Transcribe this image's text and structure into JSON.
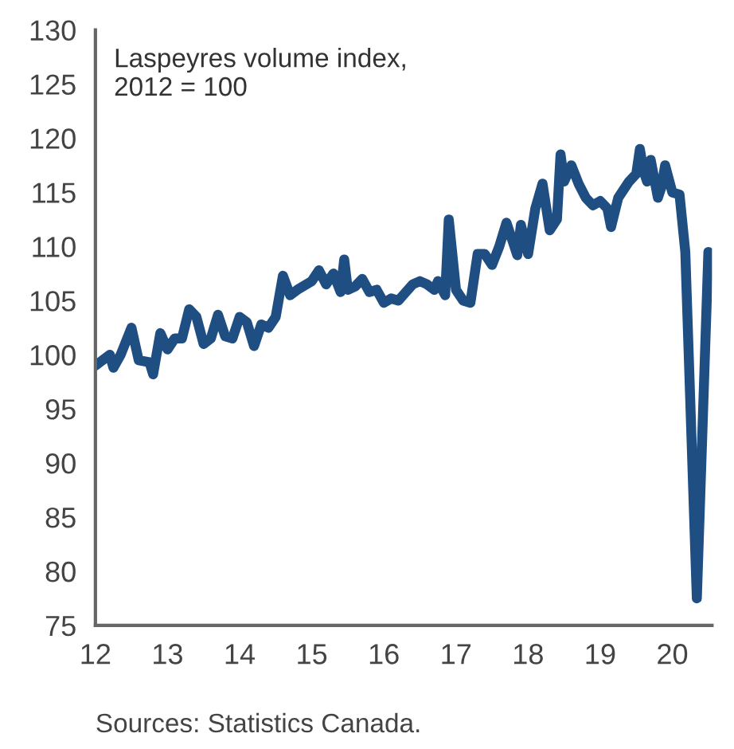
{
  "chart_data": {
    "type": "line",
    "x": [
      12.0,
      12.1,
      12.2,
      12.25,
      12.35,
      12.5,
      12.6,
      12.75,
      12.8,
      12.9,
      13.0,
      13.1,
      13.2,
      13.3,
      13.4,
      13.5,
      13.6,
      13.7,
      13.8,
      13.9,
      14.0,
      14.1,
      14.2,
      14.3,
      14.4,
      14.5,
      14.6,
      14.7,
      14.8,
      15.0,
      15.1,
      15.2,
      15.3,
      15.4,
      15.45,
      15.5,
      15.6,
      15.7,
      15.8,
      15.9,
      16.0,
      16.1,
      16.2,
      16.4,
      16.5,
      16.6,
      16.7,
      16.75,
      16.85,
      16.9,
      17.0,
      17.1,
      17.2,
      17.3,
      17.4,
      17.5,
      17.6,
      17.7,
      17.8,
      17.85,
      17.9,
      18.0,
      18.1,
      18.2,
      18.3,
      18.4,
      18.45,
      18.5,
      18.6,
      18.7,
      18.8,
      18.9,
      19.0,
      19.1,
      19.15,
      19.25,
      19.4,
      19.5,
      19.55,
      19.6,
      19.65,
      19.7,
      19.8,
      19.85,
      19.9,
      20.0,
      20.1,
      20.18,
      20.34,
      20.5
    ],
    "series": [
      {
        "color": "#1f4e82",
        "values": [
          99,
          99.5,
          100,
          98.8,
          100,
          102.5,
          99.5,
          99.3,
          98.2,
          102,
          100.5,
          101.5,
          101.5,
          104.2,
          103.5,
          101,
          101.5,
          103.7,
          101.7,
          101.5,
          103.5,
          103,
          100.8,
          102.8,
          102.5,
          103.5,
          107.3,
          105.5,
          106,
          106.8,
          107.8,
          106.5,
          107.5,
          105.8,
          108.8,
          106,
          106.3,
          107,
          105.8,
          106,
          104.8,
          105.2,
          105,
          106.5,
          106.8,
          106.5,
          106,
          106.8,
          105.5,
          112.5,
          106,
          105,
          104.8,
          109.3,
          109.3,
          108.3,
          110,
          112.2,
          110.2,
          109.2,
          112,
          109.3,
          113.5,
          115.8,
          111.5,
          112.5,
          118.5,
          116,
          117.5,
          115.8,
          114.5,
          113.8,
          114.2,
          113.5,
          111.8,
          114.5,
          116,
          116.7,
          119,
          117,
          116,
          118,
          114.5,
          115.5,
          117.5,
          115,
          114.8,
          109.5,
          77.5,
          109.5
        ]
      }
    ],
    "xlim": [
      12,
      20.55
    ],
    "xticks": [
      12,
      13,
      14,
      15,
      16,
      17,
      18,
      19,
      20
    ],
    "ylim": [
      75,
      130
    ],
    "yticks": [
      75,
      80,
      85,
      90,
      95,
      100,
      105,
      110,
      115,
      120,
      125,
      130
    ],
    "grid": false,
    "legend": false,
    "marker": "none",
    "line_style": "solid",
    "annotations": [
      "Laspeyres volume index,\n2012 = 100",
      "Sources: Statistics Canada."
    ]
  }
}
